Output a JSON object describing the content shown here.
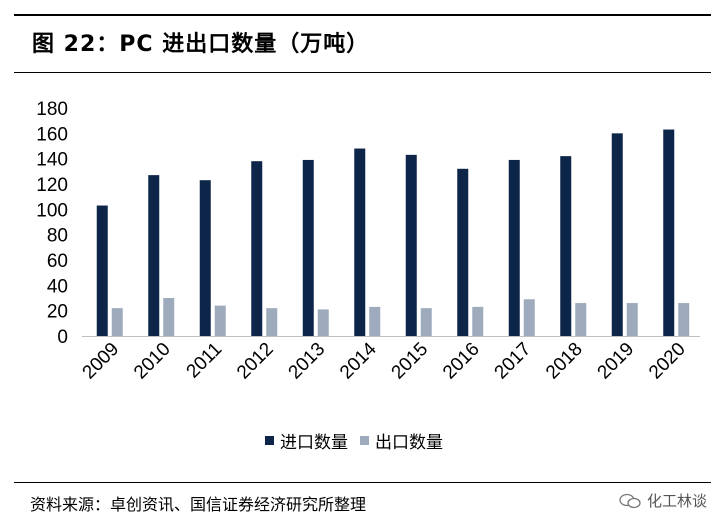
{
  "header": {
    "title": "图 22：PC 进出口数量（万吨）"
  },
  "footer": {
    "source": "资料来源：卓创资讯、国信证券经济研究所整理",
    "watermark": "化工林谈"
  },
  "colors": {
    "import": "#0d2549",
    "export": "#9eabbd"
  },
  "legend": {
    "import_label": "进口数量",
    "export_label": "出口数量"
  },
  "chart_data": {
    "type": "bar",
    "title": "",
    "xlabel": "",
    "ylabel": "",
    "categories": [
      "2009",
      "2010",
      "2011",
      "2012",
      "2013",
      "2014",
      "2015",
      "2016",
      "2017",
      "2018",
      "2019",
      "2020"
    ],
    "series": [
      {
        "name": "进口数量",
        "values": [
          103,
          127,
          123,
          138,
          139,
          148,
          143,
          132,
          139,
          142,
          160,
          163
        ]
      },
      {
        "name": "出口数量",
        "values": [
          22,
          30,
          24,
          22,
          21,
          23,
          22,
          23,
          29,
          26,
          26,
          26
        ]
      }
    ],
    "ylim": [
      0,
      180
    ],
    "yticks": [
      0,
      20,
      40,
      60,
      80,
      100,
      120,
      140,
      160,
      180
    ],
    "grid": false,
    "legend_position": "bottom"
  }
}
